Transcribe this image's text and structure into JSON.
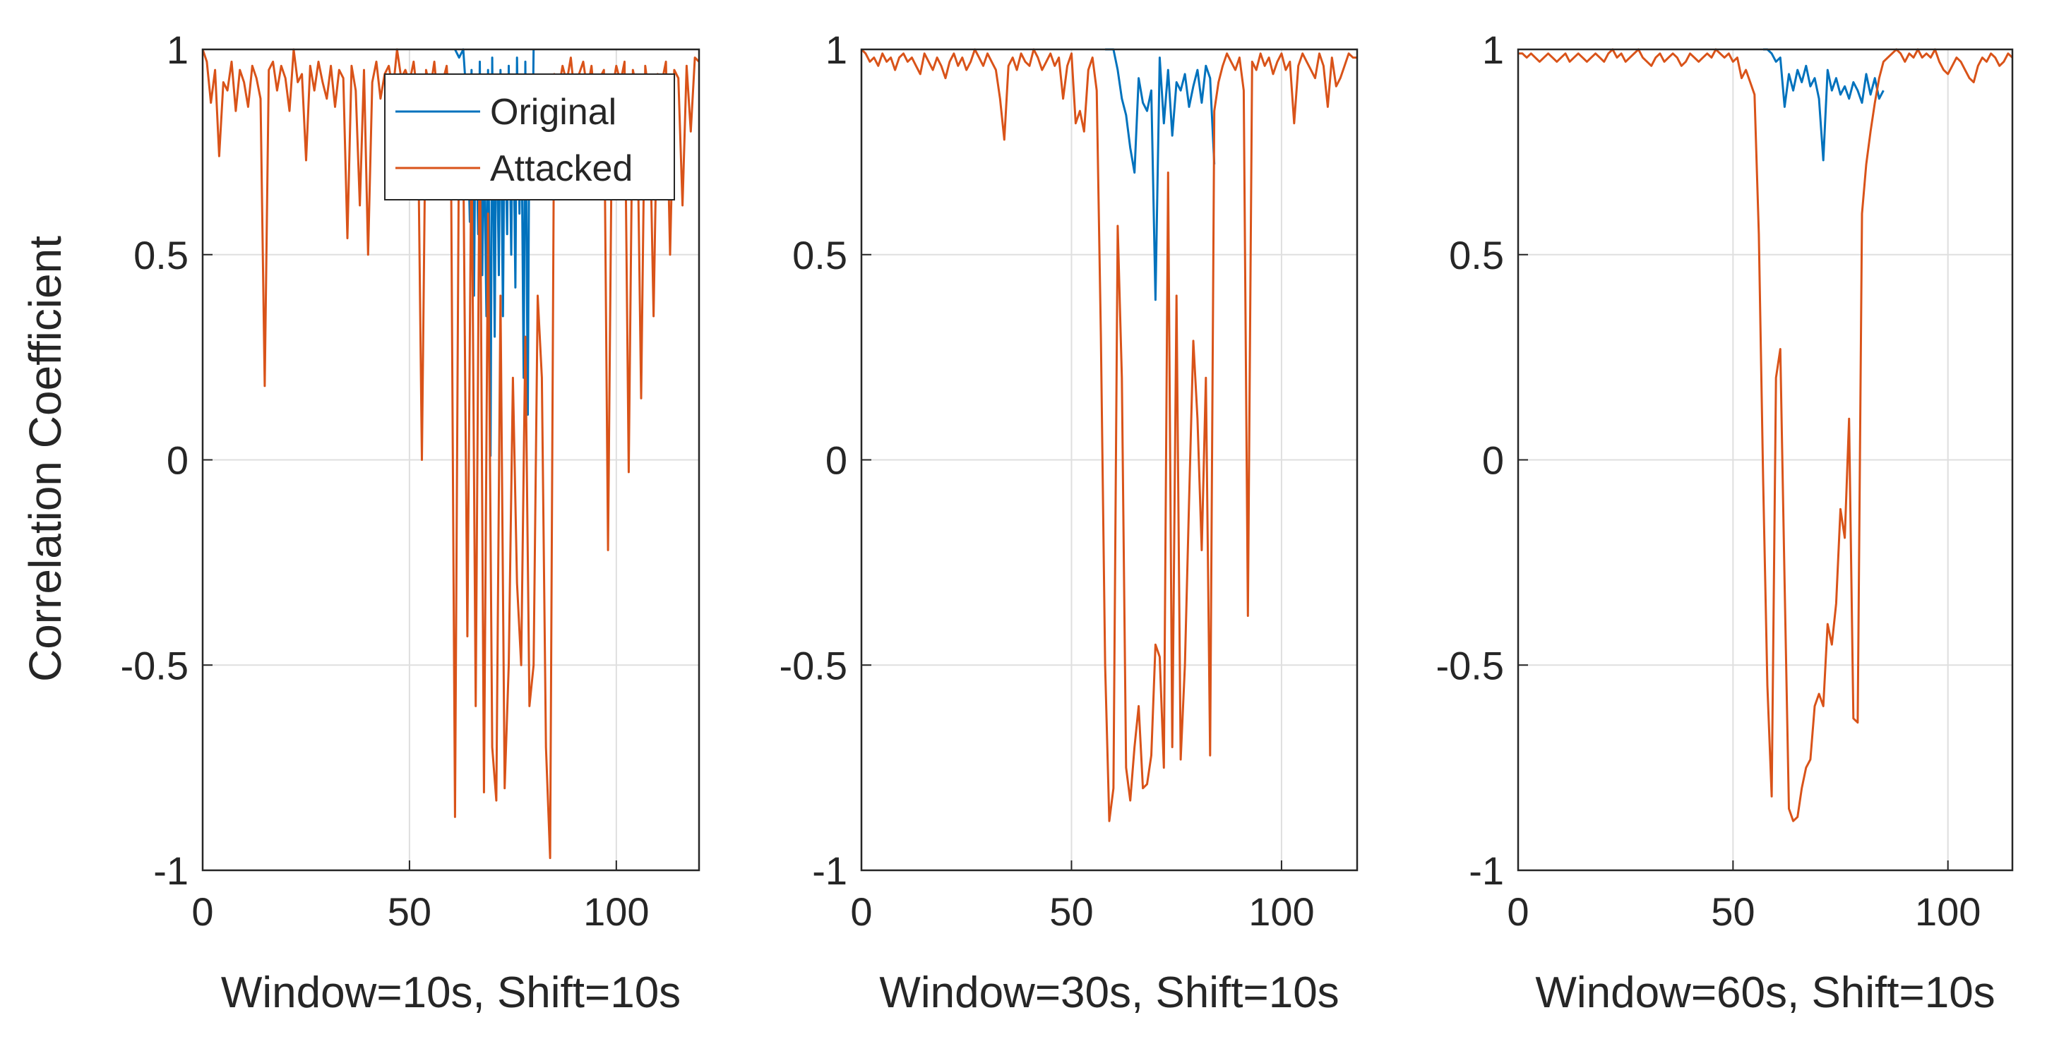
{
  "figure": {
    "ylabel": "Correlation Coefficient",
    "colors": {
      "original": "#0072BD",
      "attacked": "#D95319",
      "axis": "#262626",
      "grid": "#dfdfdf"
    }
  },
  "legend": {
    "placement": "top-right of first panel",
    "entries": [
      "Original",
      "Attacked"
    ]
  },
  "chart_data": [
    {
      "type": "line",
      "xlabel": "Window=10s, Shift=10s",
      "ylabel": "Correlation Coefficient",
      "xlim": [
        0,
        120
      ],
      "ylim": [
        -1,
        1
      ],
      "xticks": [
        0,
        50,
        100
      ],
      "xtick_labels": [
        "0",
        "50",
        "100"
      ],
      "yticks": [
        -1,
        -0.5,
        0,
        0.5,
        1
      ],
      "ytick_labels": [
        "-1",
        "-0.5",
        "0",
        "0.5",
        "1"
      ],
      "grid": true,
      "series": [
        {
          "name": "Original",
          "x": [
            61,
            62,
            63,
            64,
            64.6,
            65,
            65.6,
            66,
            66.6,
            67,
            67.6,
            68,
            68.6,
            69,
            69.6,
            70,
            70.6,
            71,
            71.6,
            72,
            72.6,
            73,
            73.6,
            74,
            74.6,
            75,
            75.6,
            76,
            76.6,
            77,
            77.6,
            78,
            78.6,
            79,
            79.6,
            80
          ],
          "y": [
            1,
            0.98,
            1,
            0.85,
            0.58,
            0.95,
            0.4,
            0.9,
            0.55,
            0.97,
            0.45,
            0.8,
            0.35,
            0.95,
            0.01,
            0.98,
            0.3,
            0.9,
            0.45,
            0.95,
            0.35,
            0.88,
            0.55,
            0.96,
            0.5,
            0.93,
            0.42,
            0.98,
            0.6,
            0.92,
            0.2,
            0.97,
            0.11,
            0.9,
            0.65,
            1
          ]
        },
        {
          "name": "Attacked",
          "x": [
            0,
            1,
            2,
            3,
            4,
            5,
            6,
            7,
            8,
            9,
            10,
            11,
            12,
            13,
            14,
            15,
            16,
            17,
            18,
            19,
            20,
            21,
            22,
            23,
            24,
            25,
            26,
            27,
            28,
            29,
            30,
            31,
            32,
            33,
            34,
            35,
            36,
            37,
            38,
            39,
            40,
            41,
            42,
            43,
            44,
            45,
            46,
            47,
            48,
            49,
            50,
            51,
            52,
            53,
            54,
            55,
            56,
            57,
            58,
            59,
            60,
            61,
            62,
            63,
            64,
            65,
            66,
            67,
            68,
            69,
            70,
            71,
            72,
            73,
            74,
            75,
            76,
            77,
            78,
            79,
            80,
            81,
            82,
            83,
            84,
            85,
            86,
            87,
            88,
            89,
            90,
            91,
            92,
            93,
            94,
            95,
            96,
            97,
            98,
            99,
            100,
            101,
            102,
            103,
            104,
            105,
            106,
            107,
            108,
            109,
            110,
            111,
            112,
            113,
            114,
            115,
            116,
            117,
            118,
            119,
            120
          ],
          "y": [
            1,
            0.97,
            0.87,
            0.95,
            0.74,
            0.92,
            0.9,
            0.97,
            0.85,
            0.95,
            0.92,
            0.86,
            0.96,
            0.93,
            0.88,
            0.18,
            0.95,
            0.97,
            0.9,
            0.96,
            0.93,
            0.85,
            1,
            0.92,
            0.94,
            0.73,
            0.96,
            0.9,
            0.97,
            0.92,
            0.88,
            0.96,
            0.86,
            0.95,
            0.93,
            0.54,
            0.96,
            0.9,
            0.62,
            0.95,
            0.5,
            0.92,
            0.97,
            0.88,
            0.94,
            0.96,
            0.9,
            1,
            0.93,
            0.95,
            0.92,
            0.97,
            0.88,
            0,
            0.95,
            0.9,
            0.97,
            0.86,
            0.92,
            0.96,
            0.8,
            -0.87,
            0.85,
            0.75,
            -0.43,
            0.8,
            -0.6,
            0.85,
            -0.81,
            0.6,
            -0.7,
            -0.83,
            0.4,
            -0.8,
            -0.5,
            0.2,
            -0.3,
            -0.5,
            0.3,
            -0.6,
            -0.5,
            0.4,
            0.2,
            -0.7,
            -0.97,
            0.94,
            0.9,
            0.96,
            0.92,
            0.98,
            0.88,
            0.94,
            0.97,
            0.9,
            0.96,
            0.85,
            0.93,
            0.95,
            -0.22,
            0.9,
            0.96,
            0.92,
            0.97,
            -0.03,
            0.95,
            0.9,
            0.15,
            0.96,
            0.88,
            0.35,
            0.94,
            0.92,
            0.97,
            0.5,
            0.95,
            0.93,
            0.62,
            0.96,
            0.8,
            0.98,
            0.97
          ]
        }
      ]
    },
    {
      "type": "line",
      "xlabel": "Window=30s, Shift=10s",
      "ylabel": "",
      "xlim": [
        0,
        118
      ],
      "ylim": [
        -1,
        1
      ],
      "xticks": [
        0,
        50,
        100
      ],
      "xtick_labels": [
        "0",
        "50",
        "100"
      ],
      "yticks": [
        -1,
        -0.5,
        0,
        0.5,
        1
      ],
      "ytick_labels": [
        "-1",
        "-0.5",
        "0",
        "0.5",
        "1"
      ],
      "grid": true,
      "series": [
        {
          "name": "Original",
          "x": [
            58,
            59,
            60,
            61,
            62,
            63,
            64,
            65,
            66,
            67,
            68,
            69,
            70,
            71,
            72,
            73,
            74,
            75,
            76,
            77,
            78,
            79,
            80,
            81,
            82,
            83,
            84
          ],
          "y": [
            1,
            1,
            1,
            0.95,
            0.88,
            0.84,
            0.76,
            0.7,
            0.93,
            0.87,
            0.85,
            0.9,
            0.39,
            0.98,
            0.82,
            0.95,
            0.79,
            0.92,
            0.9,
            0.94,
            0.86,
            0.91,
            0.95,
            0.87,
            0.96,
            0.93,
            0.72
          ]
        },
        {
          "name": "Attacked",
          "x": [
            0,
            1,
            2,
            3,
            4,
            5,
            6,
            7,
            8,
            9,
            10,
            11,
            12,
            13,
            14,
            15,
            16,
            17,
            18,
            19,
            20,
            21,
            22,
            23,
            24,
            25,
            26,
            27,
            28,
            29,
            30,
            31,
            32,
            33,
            34,
            35,
            36,
            37,
            38,
            39,
            40,
            41,
            42,
            43,
            44,
            45,
            46,
            47,
            48,
            49,
            50,
            51,
            52,
            53,
            54,
            55,
            56,
            57,
            58,
            59,
            60,
            61,
            62,
            63,
            64,
            65,
            66,
            67,
            68,
            69,
            70,
            71,
            72,
            73,
            74,
            75,
            76,
            77,
            78,
            79,
            80,
            81,
            82,
            83,
            84,
            85,
            86,
            87,
            88,
            89,
            90,
            91,
            92,
            93,
            94,
            95,
            96,
            97,
            98,
            99,
            100,
            101,
            102,
            103,
            104,
            105,
            106,
            107,
            108,
            109,
            110,
            111,
            112,
            113,
            114,
            115,
            116,
            117,
            118
          ],
          "y": [
            1,
            0.99,
            0.97,
            0.98,
            0.96,
            0.99,
            0.97,
            0.98,
            0.95,
            0.98,
            0.99,
            0.97,
            0.98,
            0.96,
            0.94,
            0.99,
            0.97,
            0.95,
            0.98,
            0.96,
            0.93,
            0.97,
            0.99,
            0.96,
            0.98,
            0.95,
            0.97,
            1,
            0.98,
            0.96,
            0.99,
            0.97,
            0.95,
            0.88,
            0.78,
            0.96,
            0.98,
            0.95,
            0.99,
            0.97,
            0.96,
            1,
            0.98,
            0.95,
            0.97,
            0.99,
            0.96,
            0.98,
            0.88,
            0.96,
            0.99,
            0.82,
            0.85,
            0.8,
            0.95,
            0.98,
            0.9,
            0.3,
            -0.5,
            -0.88,
            -0.8,
            0.57,
            0.2,
            -0.75,
            -0.83,
            -0.7,
            -0.6,
            -0.8,
            -0.79,
            -0.72,
            -0.45,
            -0.48,
            -0.75,
            0.7,
            -0.7,
            0.4,
            -0.73,
            -0.5,
            -0.1,
            0.29,
            0.1,
            -0.22,
            0.2,
            -0.72,
            0.85,
            0.92,
            0.96,
            0.99,
            0.97,
            0.95,
            0.98,
            0.9,
            -0.38,
            0.97,
            0.95,
            0.99,
            0.96,
            0.98,
            0.94,
            0.97,
            0.99,
            0.95,
            0.97,
            0.82,
            0.96,
            0.99,
            0.97,
            0.95,
            0.93,
            0.99,
            0.96,
            0.86,
            0.98,
            0.91,
            0.93,
            0.96,
            0.99,
            0.98,
            0.98
          ]
        }
      ]
    },
    {
      "type": "line",
      "xlabel": "Window=60s, Shift=10s",
      "ylabel": "",
      "xlim": [
        0,
        115
      ],
      "ylim": [
        -1,
        1
      ],
      "xticks": [
        0,
        50,
        100
      ],
      "xtick_labels": [
        "0",
        "50",
        "100"
      ],
      "yticks": [
        -1,
        -0.5,
        0,
        0.5,
        1
      ],
      "ytick_labels": [
        "-1",
        "-0.5",
        "0",
        "0.5",
        "1"
      ],
      "grid": true,
      "series": [
        {
          "name": "Original",
          "x": [
            57,
            58,
            59,
            60,
            61,
            62,
            63,
            64,
            65,
            66,
            67,
            68,
            69,
            70,
            71,
            72,
            73,
            74,
            75,
            76,
            77,
            78,
            79,
            80,
            81,
            82,
            83,
            84,
            85
          ],
          "y": [
            1,
            1,
            0.99,
            0.97,
            0.98,
            0.86,
            0.94,
            0.9,
            0.95,
            0.92,
            0.96,
            0.91,
            0.93,
            0.88,
            0.73,
            0.95,
            0.9,
            0.93,
            0.89,
            0.91,
            0.88,
            0.92,
            0.9,
            0.87,
            0.94,
            0.89,
            0.93,
            0.88,
            0.9
          ]
        },
        {
          "name": "Attacked",
          "x": [
            0,
            1,
            2,
            3,
            4,
            5,
            6,
            7,
            8,
            9,
            10,
            11,
            12,
            13,
            14,
            15,
            16,
            17,
            18,
            19,
            20,
            21,
            22,
            23,
            24,
            25,
            26,
            27,
            28,
            29,
            30,
            31,
            32,
            33,
            34,
            35,
            36,
            37,
            38,
            39,
            40,
            41,
            42,
            43,
            44,
            45,
            46,
            47,
            48,
            49,
            50,
            51,
            52,
            53,
            54,
            55,
            56,
            57,
            58,
            59,
            60,
            61,
            62,
            63,
            64,
            65,
            66,
            67,
            68,
            69,
            70,
            71,
            72,
            73,
            74,
            75,
            76,
            77,
            78,
            79,
            80,
            81,
            82,
            83,
            84,
            85,
            86,
            87,
            88,
            89,
            90,
            91,
            92,
            93,
            94,
            95,
            96,
            97,
            98,
            99,
            100,
            101,
            102,
            103,
            104,
            105,
            106,
            107,
            108,
            109,
            110,
            111,
            112,
            113,
            114,
            115
          ],
          "y": [
            0.99,
            0.99,
            0.98,
            0.99,
            0.98,
            0.97,
            0.98,
            0.99,
            0.98,
            0.97,
            0.98,
            0.99,
            0.97,
            0.98,
            0.99,
            0.98,
            0.97,
            0.98,
            0.99,
            0.98,
            0.97,
            0.99,
            1,
            0.98,
            0.99,
            0.97,
            0.98,
            0.99,
            1,
            0.98,
            0.97,
            0.96,
            0.98,
            0.99,
            0.97,
            0.98,
            0.99,
            0.98,
            0.96,
            0.97,
            0.99,
            0.98,
            0.97,
            0.98,
            0.99,
            0.98,
            1,
            0.99,
            0.98,
            0.99,
            0.97,
            0.98,
            0.93,
            0.95,
            0.92,
            0.89,
            0.55,
            -0.05,
            -0.55,
            -0.82,
            0.2,
            0.27,
            -0.3,
            -0.85,
            -0.88,
            -0.87,
            -0.8,
            -0.75,
            -0.73,
            -0.6,
            -0.57,
            -0.6,
            -0.4,
            -0.45,
            -0.35,
            -0.12,
            -0.19,
            0.1,
            -0.63,
            -0.64,
            0.6,
            0.72,
            0.8,
            0.87,
            0.93,
            0.97,
            0.98,
            0.99,
            1,
            0.99,
            0.97,
            0.99,
            0.98,
            1,
            0.98,
            0.99,
            0.98,
            1,
            0.97,
            0.95,
            0.94,
            0.96,
            0.98,
            0.97,
            0.95,
            0.93,
            0.92,
            0.96,
            0.98,
            0.97,
            0.99,
            0.98,
            0.96,
            0.97,
            0.99,
            0.98
          ]
        }
      ]
    }
  ]
}
